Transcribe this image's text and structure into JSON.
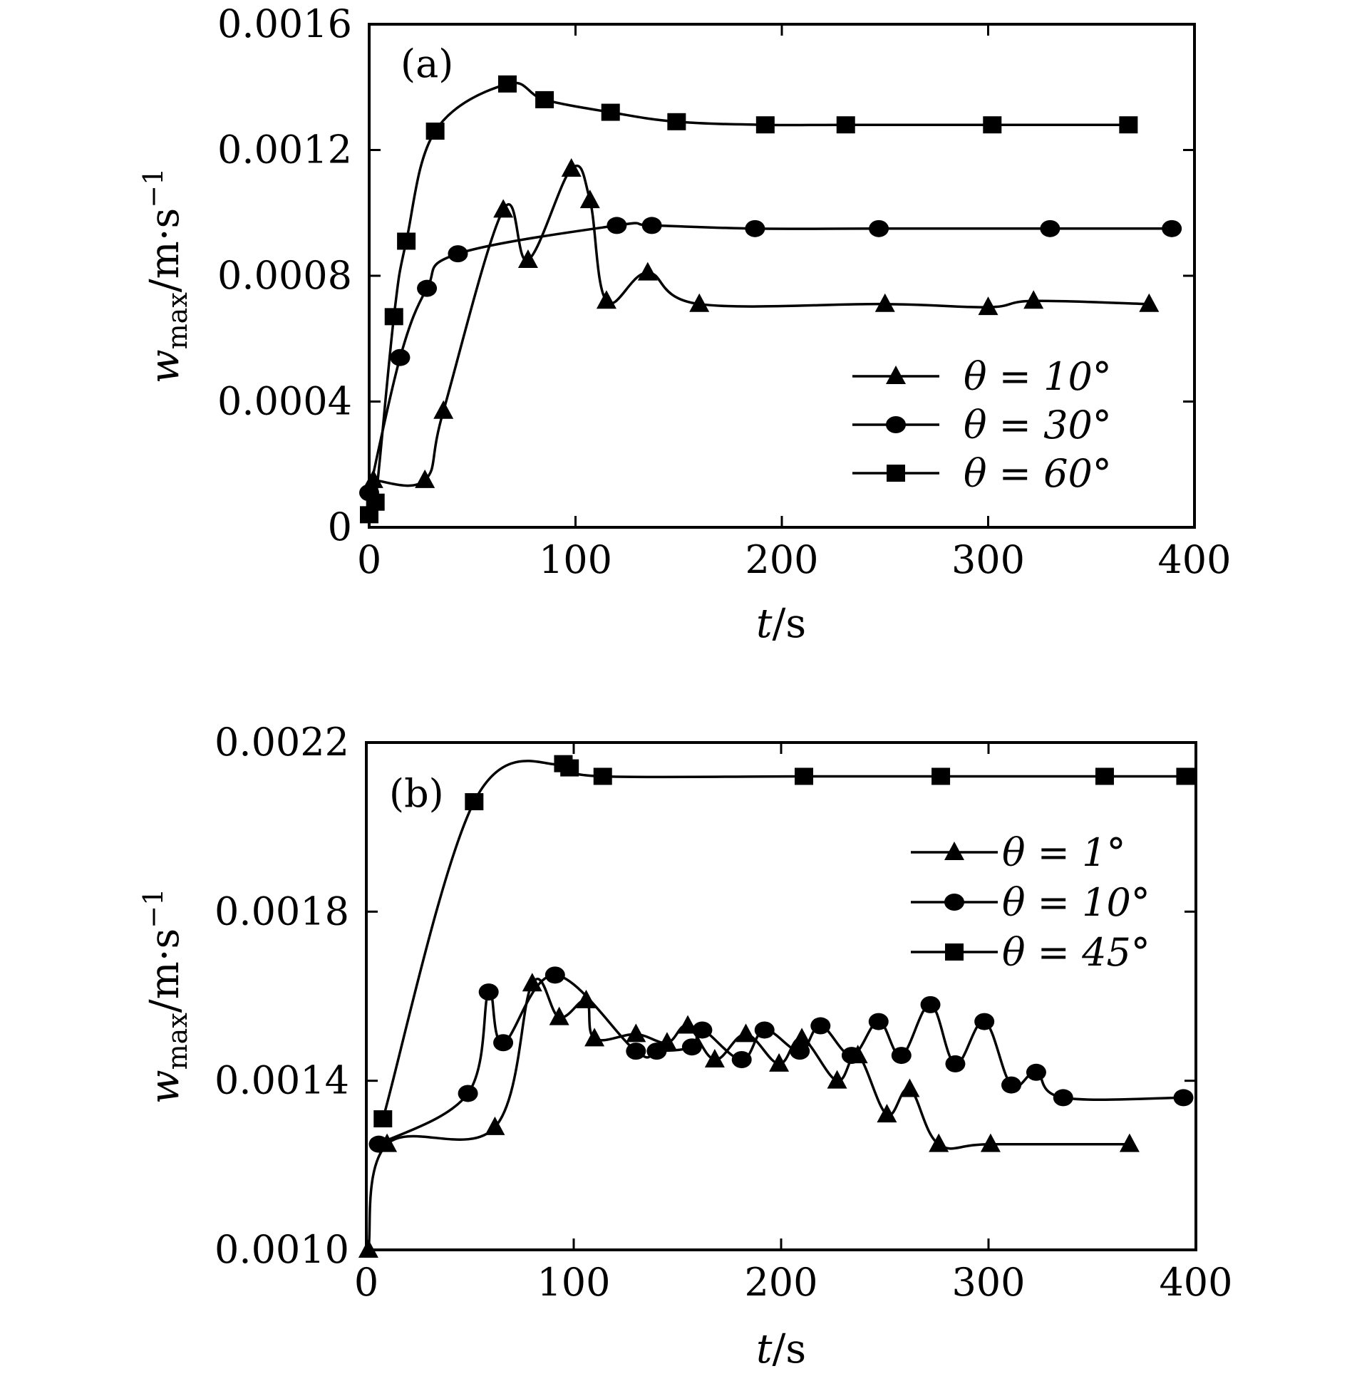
{
  "chart_data": [
    {
      "type": "line",
      "panel_label": "(a)",
      "xlabel": "t/s",
      "ylabel": "w_max/m·s^-1",
      "xlim": [
        0,
        400
      ],
      "ylim": [
        0,
        0.0016
      ],
      "xticks": [
        "0",
        "100",
        "200",
        "300",
        "400"
      ],
      "yticks": [
        "0",
        "0.0004",
        "0.0008",
        "0.0012",
        "0.0016"
      ],
      "legend_position": "right-middle",
      "series": [
        {
          "name": "θ = 10°",
          "marker": "triangle",
          "points": [
            [
              2,
              0.00015
            ],
            [
              27,
              0.00015
            ],
            [
              36,
              0.00037
            ],
            [
              65,
              0.00101
            ],
            [
              77,
              0.00085
            ],
            [
              98,
              0.00114
            ],
            [
              107,
              0.00104
            ],
            [
              115,
              0.00072
            ],
            [
              135,
              0.00081
            ],
            [
              160,
              0.00071
            ],
            [
              250,
              0.00071
            ],
            [
              300,
              0.0007
            ],
            [
              322,
              0.00072
            ],
            [
              378,
              0.00071
            ]
          ]
        },
        {
          "name": "θ = 30°",
          "marker": "circle",
          "points": [
            [
              0,
              0.00011
            ],
            [
              15,
              0.00054
            ],
            [
              28,
              0.00076
            ],
            [
              43,
              0.00087
            ],
            [
              120,
              0.00096
            ],
            [
              137,
              0.00096
            ],
            [
              187,
              0.00095
            ],
            [
              247,
              0.00095
            ],
            [
              330,
              0.00095
            ],
            [
              389,
              0.00095
            ]
          ]
        },
        {
          "name": "θ = 60°",
          "marker": "square",
          "points": [
            [
              0,
              4e-05
            ],
            [
              3,
              8e-05
            ],
            [
              12,
              0.00067
            ],
            [
              18,
              0.00091
            ],
            [
              32,
              0.00126
            ],
            [
              67,
              0.00141
            ],
            [
              85,
              0.00136
            ],
            [
              117,
              0.00132
            ],
            [
              149,
              0.00129
            ],
            [
              192,
              0.00128
            ],
            [
              231,
              0.00128
            ],
            [
              302,
              0.00128
            ],
            [
              368,
              0.00128
            ]
          ]
        }
      ]
    },
    {
      "type": "line",
      "panel_label": "(b)",
      "xlabel": "t/s",
      "ylabel": "w_max/m·s^-1",
      "xlim": [
        0,
        400
      ],
      "ylim": [
        0.001,
        0.0022
      ],
      "xticks": [
        "0",
        "100",
        "200",
        "300",
        "400"
      ],
      "yticks": [
        "0.0010",
        "0.0014",
        "0.0018",
        "0.0022"
      ],
      "legend_position": "top-right",
      "series": [
        {
          "name": "θ = 1°",
          "marker": "triangle",
          "points": [
            [
              1,
              0.001
            ],
            [
              10,
              0.00125
            ],
            [
              62,
              0.00129
            ],
            [
              80,
              0.00163
            ],
            [
              93,
              0.00155
            ],
            [
              106,
              0.00159
            ],
            [
              110,
              0.0015
            ],
            [
              130,
              0.00151
            ],
            [
              145,
              0.00149
            ],
            [
              155,
              0.00153
            ],
            [
              168,
              0.00145
            ],
            [
              183,
              0.00151
            ],
            [
              199,
              0.00144
            ],
            [
              210,
              0.0015
            ],
            [
              227,
              0.0014
            ],
            [
              237,
              0.00146
            ],
            [
              251,
              0.00132
            ],
            [
              262,
              0.00138
            ],
            [
              276,
              0.00125
            ],
            [
              301,
              0.00125
            ],
            [
              368,
              0.00125
            ]
          ]
        },
        {
          "name": "θ = 10°",
          "marker": "circle",
          "points": [
            [
              6,
              0.00125
            ],
            [
              49,
              0.00137
            ],
            [
              59,
              0.00161
            ],
            [
              66,
              0.00149
            ],
            [
              91,
              0.00165
            ],
            [
              130,
              0.00147
            ],
            [
              140,
              0.00147
            ],
            [
              157,
              0.00148
            ],
            [
              162,
              0.00152
            ],
            [
              181,
              0.00145
            ],
            [
              192,
              0.00152
            ],
            [
              209,
              0.00147
            ],
            [
              219,
              0.00153
            ],
            [
              234,
              0.00146
            ],
            [
              247,
              0.00154
            ],
            [
              258,
              0.00146
            ],
            [
              272,
              0.00158
            ],
            [
              284,
              0.00144
            ],
            [
              298,
              0.00154
            ],
            [
              311,
              0.00139
            ],
            [
              323,
              0.00142
            ],
            [
              336,
              0.00136
            ],
            [
              394,
              0.00136
            ]
          ]
        },
        {
          "name": "θ = 45°",
          "marker": "square",
          "points": [
            [
              8,
              0.00131
            ],
            [
              52,
              0.00206
            ],
            [
              95,
              0.00215
            ],
            [
              98,
              0.00214
            ],
            [
              114,
              0.00212
            ],
            [
              211,
              0.00212
            ],
            [
              277,
              0.00212
            ],
            [
              356,
              0.00212
            ],
            [
              395,
              0.00212
            ]
          ]
        }
      ]
    }
  ]
}
